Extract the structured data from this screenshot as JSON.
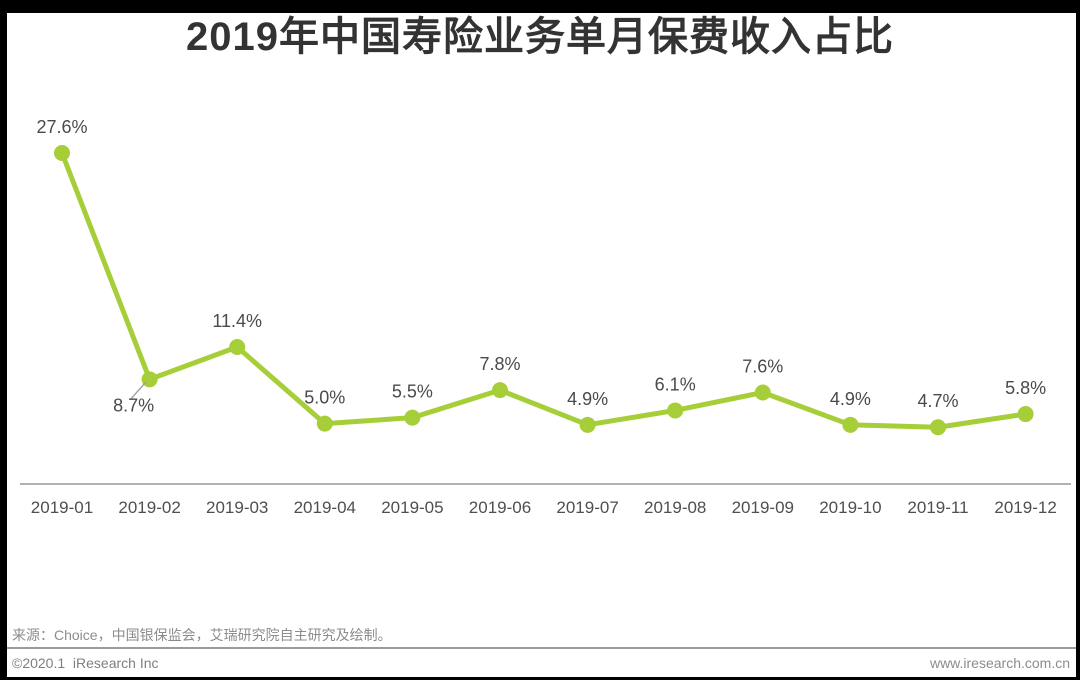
{
  "title": "2019年中国寿险业务单月保费收入占比",
  "chart_data": {
    "type": "line",
    "title": "2019年中国寿险业务单月保费收入占比",
    "categories": [
      "2019-01",
      "2019-02",
      "2019-03",
      "2019-04",
      "2019-05",
      "2019-06",
      "2019-07",
      "2019-08",
      "2019-09",
      "2019-10",
      "2019-11",
      "2019-12"
    ],
    "values": [
      27.6,
      8.7,
      11.4,
      5.0,
      5.5,
      7.8,
      4.9,
      6.1,
      7.6,
      4.9,
      4.7,
      5.8
    ],
    "unit": "%",
    "xlabel": "",
    "ylabel": "",
    "ylim": [
      0,
      30
    ],
    "grid": false,
    "legend": "none",
    "data_labels": true,
    "label_below_indices": [
      1
    ],
    "line_color": "#a6ce38",
    "marker_color": "#a6ce38",
    "axis_line_color": "#a6a6a6",
    "label_text_color": "#4a4a4a",
    "tick_text_color": "#4f4f4f"
  },
  "footer": {
    "source": "来源：Choice，中国银保监会，艾瑞研究院自主研究及绘制。",
    "copyright": "©2020.1  iResearch Inc",
    "website": "www.iresearch.com.cn"
  }
}
